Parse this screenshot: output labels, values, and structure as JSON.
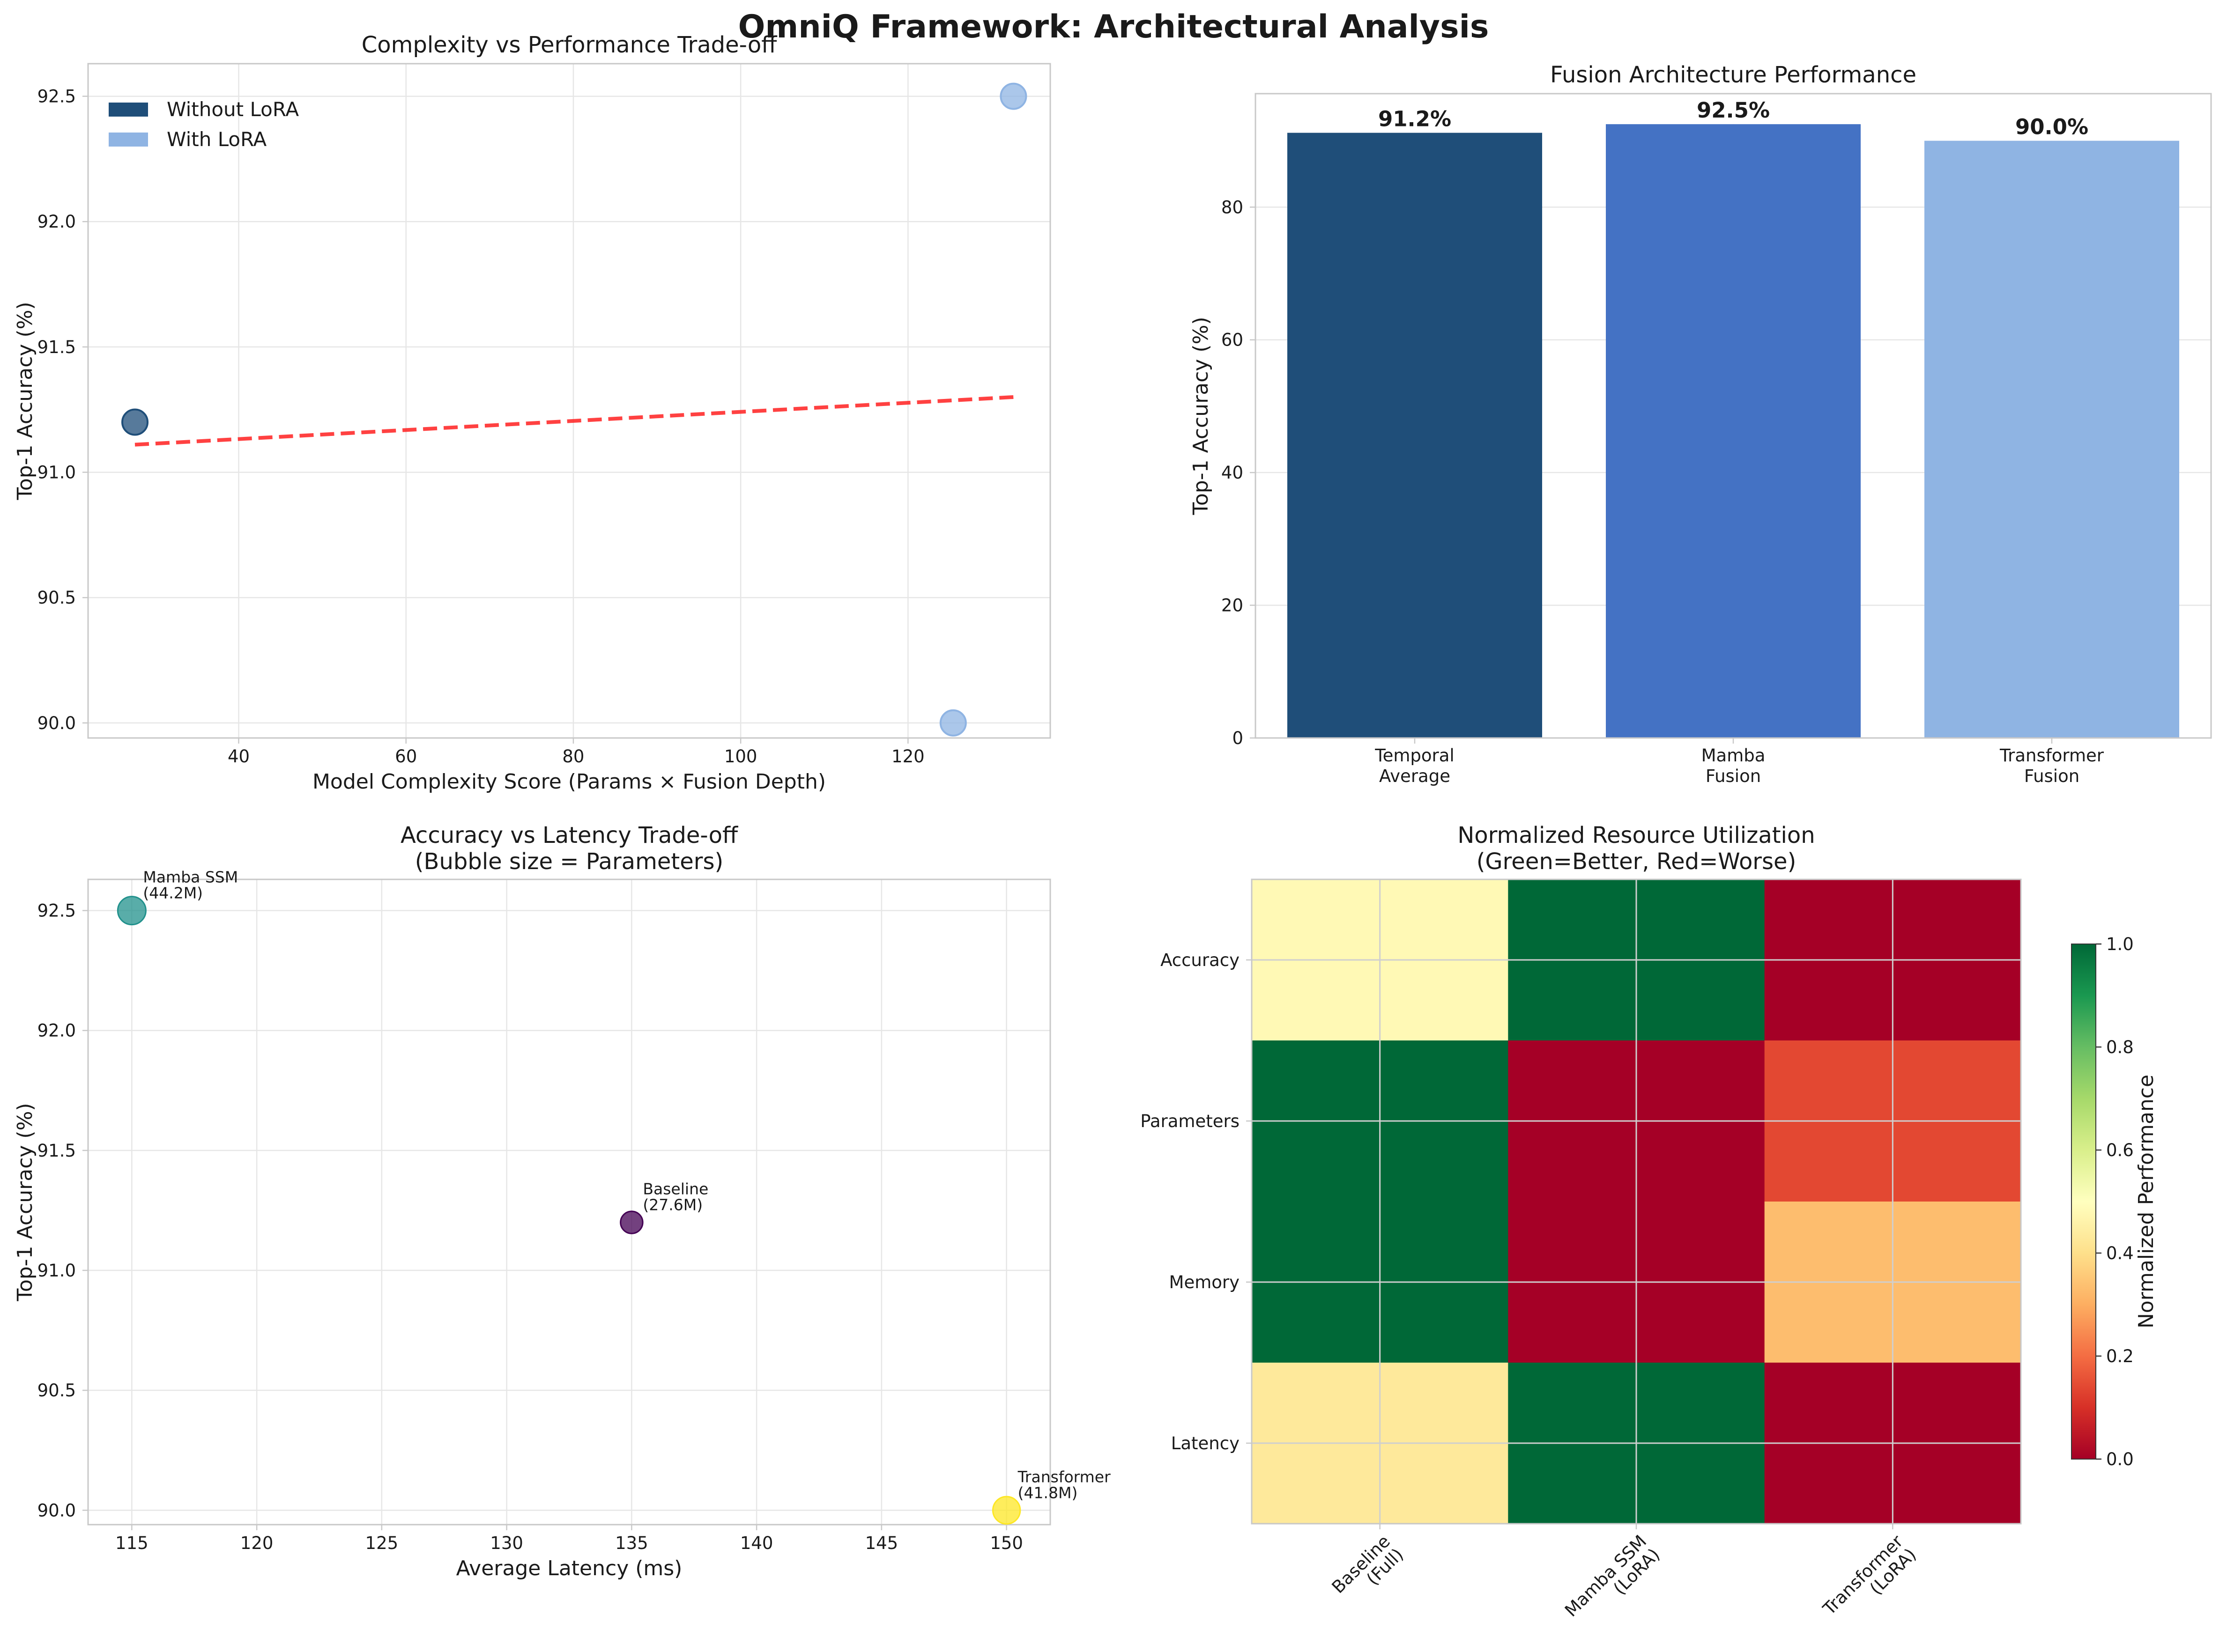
{
  "suptitle": "OmniQ Framework: Architectural Analysis",
  "colors": {
    "without_lora": "#1f4e79",
    "with_lora": "#8fb4e3",
    "mamba_bar": "#4472c4",
    "trend": "#ff2020",
    "baseline_bubble": "#440154",
    "mamba_bubble": "#21918c",
    "transformer_bubble": "#fde725"
  },
  "chart_data": [
    {
      "id": "complexity",
      "type": "scatter",
      "title": "Complexity vs Performance Trade-off",
      "xlabel": "Model Complexity Score (Params × Fusion Depth)",
      "ylabel": "Top-1 Accuracy (%)",
      "xlim": [
        22,
        137
      ],
      "ylim": [
        89.94,
        92.63
      ],
      "xticks": [
        40,
        60,
        80,
        100,
        120
      ],
      "yticks": [
        90.0,
        90.5,
        91.0,
        91.5,
        92.0,
        92.5
      ],
      "ytick_labels": [
        "90.0",
        "90.5",
        "91.0",
        "91.5",
        "92.0",
        "92.5"
      ],
      "legend": {
        "position": "upper-left",
        "entries": [
          "Without LoRA",
          "With LoRA"
        ]
      },
      "series": [
        {
          "name": "Without LoRA",
          "x": [
            27.6
          ],
          "y": [
            91.2
          ]
        },
        {
          "name": "With LoRA",
          "x": [
            125.4,
            132.6
          ],
          "y": [
            90.0,
            92.5
          ]
        }
      ],
      "trendline": {
        "x": [
          27.6,
          132.6
        ],
        "y": [
          91.11,
          91.3
        ]
      }
    },
    {
      "id": "fusion",
      "type": "bar",
      "title": "Fusion Architecture Performance",
      "ylabel": "Top-1 Accuracy (%)",
      "categories": [
        [
          "Temporal",
          "Average"
        ],
        [
          "Mamba",
          "Fusion"
        ],
        [
          "Transformer",
          "Fusion"
        ]
      ],
      "values": [
        91.2,
        92.5,
        90.0
      ],
      "value_labels": [
        "91.2%",
        "92.5%",
        "90.0%"
      ],
      "ylim": [
        0,
        97.1
      ],
      "yticks": [
        0,
        20,
        40,
        60,
        80
      ]
    },
    {
      "id": "latency",
      "type": "scatter",
      "title": [
        "Accuracy vs Latency Trade-off",
        "(Bubble size = Parameters)"
      ],
      "xlabel": "Average Latency (ms)",
      "ylabel": "Top-1 Accuracy (%)",
      "xlim": [
        113.25,
        151.75
      ],
      "ylim": [
        89.94,
        92.63
      ],
      "xticks": [
        115,
        120,
        125,
        130,
        135,
        140,
        145,
        150
      ],
      "yticks": [
        90.0,
        90.5,
        91.0,
        91.5,
        92.0,
        92.5
      ],
      "ytick_labels": [
        "90.0",
        "90.5",
        "91.0",
        "91.5",
        "92.0",
        "92.5"
      ],
      "points": [
        {
          "label": [
            "Mamba SSM",
            "(44.2M)"
          ],
          "x": 115,
          "y": 92.5,
          "params": 44.2
        },
        {
          "label": [
            "Baseline",
            "(27.6M)"
          ],
          "x": 135,
          "y": 91.2,
          "params": 27.6
        },
        {
          "label": [
            "Transformer",
            "(41.8M)"
          ],
          "x": 150,
          "y": 90.0,
          "params": 41.8
        }
      ]
    },
    {
      "id": "resource",
      "type": "heatmap",
      "title": [
        "Normalized Resource Utilization",
        "(Green=Better, Red=Worse)"
      ],
      "rows": [
        "Accuracy",
        "Parameters",
        "Memory",
        "Latency"
      ],
      "cols": [
        [
          "Baseline",
          "(Full)"
        ],
        [
          "Mamba SSM",
          "(LoRA)"
        ],
        [
          "Transformer",
          "(LoRA)"
        ]
      ],
      "values": [
        [
          0.48,
          1.0,
          0.0
        ],
        [
          1.0,
          0.0,
          0.14
        ],
        [
          1.0,
          0.0,
          0.33
        ],
        [
          0.43,
          1.0,
          0.0
        ]
      ],
      "colorbar": {
        "label": "Normalized Performance",
        "range": [
          0,
          1
        ],
        "ticks": [
          "0.0",
          "0.2",
          "0.4",
          "0.6",
          "0.8",
          "1.0"
        ]
      }
    }
  ]
}
